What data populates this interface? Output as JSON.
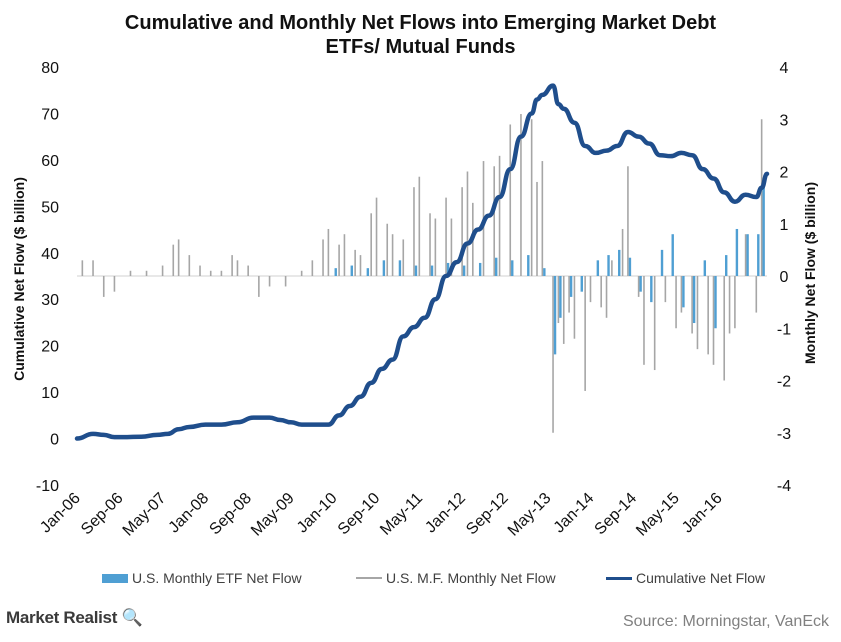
{
  "header": {
    "title_line1": "Cumulative and Monthly Net Flows into Emerging Market Debt",
    "title_line2": "ETFs/ Mutual Funds"
  },
  "footer": {
    "brand": "Market Realist",
    "source": "Source: Morningstar, VanEck"
  },
  "colors": {
    "etf": "#4f9fd3",
    "etf_dark": "#2f7fa8",
    "mf": "#a6a6a6",
    "cumulative": "#1f4e8c"
  },
  "chart_data": {
    "type": "line",
    "title": "Cumulative and Monthly Net Flows into Emerging Market Debt ETFs/ Mutual Funds",
    "x_tick_labels": [
      "Jan-06",
      "Sep-06",
      "May-07",
      "Jan-08",
      "Sep-08",
      "May-09",
      "Jan-10",
      "Sep-10",
      "May-11",
      "Jan-12",
      "Sep-12",
      "May-13",
      "Jan-14",
      "Sep-14",
      "May-15",
      "Jan-16"
    ],
    "x_start": "Jan-06",
    "x_end": "Oct-16",
    "ylabel_left": "Cumulative Net Flow ($ billion)",
    "ylabel_right": "Monthly Net Flow ($ billion)",
    "ylim_left": [
      -10,
      80
    ],
    "ylim_right": [
      -4,
      4
    ],
    "yticks_left": [
      "80",
      "70",
      "60",
      "50",
      "40",
      "30",
      "20",
      "10",
      "0",
      "-10"
    ],
    "yticks_right": [
      "4",
      "3",
      "2",
      "1",
      "0",
      "-1",
      "-2",
      "-3",
      "-4"
    ],
    "legend_position": "bottom",
    "series": [
      {
        "name": "U.S. Monthly ETF Net Flow",
        "type": "bar",
        "axis": "right",
        "points": [
          [
            "Jan-10",
            0.15
          ],
          [
            "Apr-10",
            0.2
          ],
          [
            "Jul-10",
            0.15
          ],
          [
            "Oct-10",
            0.3
          ],
          [
            "Jan-11",
            0.3
          ],
          [
            "Apr-11",
            0.2
          ],
          [
            "Jul-11",
            0.2
          ],
          [
            "Oct-11",
            0.25
          ],
          [
            "Jan-12",
            0.2
          ],
          [
            "Apr-12",
            0.25
          ],
          [
            "Jul-12",
            0.35
          ],
          [
            "Oct-12",
            0.3
          ],
          [
            "Jan-13",
            0.4
          ],
          [
            "Apr-13",
            0.15
          ],
          [
            "Jun-13",
            -1.5
          ],
          [
            "Jul-13",
            -0.8
          ],
          [
            "Sep-13",
            -0.4
          ],
          [
            "Nov-13",
            -0.3
          ],
          [
            "Feb-14",
            0.3
          ],
          [
            "Apr-14",
            0.4
          ],
          [
            "Jun-14",
            0.5
          ],
          [
            "Aug-14",
            0.35
          ],
          [
            "Oct-14",
            -0.3
          ],
          [
            "Dec-14",
            -0.5
          ],
          [
            "Feb-15",
            0.5
          ],
          [
            "Apr-15",
            0.8
          ],
          [
            "Jun-15",
            -0.6
          ],
          [
            "Aug-15",
            -0.9
          ],
          [
            "Oct-15",
            0.3
          ],
          [
            "Dec-15",
            -1.0
          ],
          [
            "Feb-16",
            0.4
          ],
          [
            "Apr-16",
            0.9
          ],
          [
            "Jun-16",
            0.8
          ],
          [
            "Aug-16",
            0.8
          ],
          [
            "Sep-16",
            1.8
          ]
        ]
      },
      {
        "name": "U.S. M.F. Monthly Net Flow",
        "type": "bar",
        "axis": "right",
        "points": [
          [
            "Feb-06",
            0.3
          ],
          [
            "Apr-06",
            0.3
          ],
          [
            "Jun-06",
            -0.4
          ],
          [
            "Aug-06",
            -0.3
          ],
          [
            "Nov-06",
            0.1
          ],
          [
            "Feb-07",
            0.1
          ],
          [
            "May-07",
            0.2
          ],
          [
            "Jul-07",
            0.6
          ],
          [
            "Aug-07",
            0.7
          ],
          [
            "Oct-07",
            0.4
          ],
          [
            "Dec-07",
            0.2
          ],
          [
            "Feb-08",
            0.1
          ],
          [
            "Apr-08",
            0.1
          ],
          [
            "Jun-08",
            0.4
          ],
          [
            "Jul-08",
            0.3
          ],
          [
            "Sep-08",
            0.2
          ],
          [
            "Nov-08",
            -0.4
          ],
          [
            "Jan-09",
            -0.2
          ],
          [
            "Apr-09",
            -0.2
          ],
          [
            "Jul-09",
            0.1
          ],
          [
            "Sep-09",
            0.3
          ],
          [
            "Nov-09",
            0.7
          ],
          [
            "Dec-09",
            0.9
          ],
          [
            "Feb-10",
            0.6
          ],
          [
            "Mar-10",
            0.8
          ],
          [
            "May-10",
            0.5
          ],
          [
            "Jun-10",
            0.4
          ],
          [
            "Aug-10",
            1.2
          ],
          [
            "Sep-10",
            1.5
          ],
          [
            "Nov-10",
            1.0
          ],
          [
            "Dec-10",
            0.8
          ],
          [
            "Feb-11",
            0.7
          ],
          [
            "Apr-11",
            1.7
          ],
          [
            "May-11",
            1.9
          ],
          [
            "Jul-11",
            1.2
          ],
          [
            "Aug-11",
            1.1
          ],
          [
            "Oct-11",
            1.5
          ],
          [
            "Nov-11",
            1.1
          ],
          [
            "Jan-12",
            1.7
          ],
          [
            "Feb-12",
            2.0
          ],
          [
            "Mar-12",
            1.4
          ],
          [
            "May-12",
            2.2
          ],
          [
            "Jul-12",
            2.1
          ],
          [
            "Aug-12",
            2.3
          ],
          [
            "Oct-12",
            2.9
          ],
          [
            "Dec-12",
            3.1
          ],
          [
            "Feb-13",
            3.0
          ],
          [
            "Mar-13",
            1.8
          ],
          [
            "Apr-13",
            2.2
          ],
          [
            "Jun-13",
            -3.0
          ],
          [
            "Jul-13",
            -0.9
          ],
          [
            "Aug-13",
            -1.3
          ],
          [
            "Sep-13",
            -0.7
          ],
          [
            "Oct-13",
            -1.2
          ],
          [
            "Dec-13",
            -2.2
          ],
          [
            "Jan-14",
            -0.5
          ],
          [
            "Mar-14",
            -0.6
          ],
          [
            "Apr-14",
            -0.8
          ],
          [
            "May-14",
            0.3
          ],
          [
            "Jul-14",
            0.9
          ],
          [
            "Aug-14",
            2.1
          ],
          [
            "Oct-14",
            -0.4
          ],
          [
            "Nov-14",
            -1.7
          ],
          [
            "Jan-15",
            -1.8
          ],
          [
            "Mar-15",
            -0.5
          ],
          [
            "May-15",
            -1.0
          ],
          [
            "Jun-15",
            -0.7
          ],
          [
            "Aug-15",
            -1.1
          ],
          [
            "Sep-15",
            -1.4
          ],
          [
            "Nov-15",
            -1.5
          ],
          [
            "Dec-15",
            -1.7
          ],
          [
            "Feb-16",
            -2.0
          ],
          [
            "Mar-16",
            -1.1
          ],
          [
            "Apr-16",
            -1.0
          ],
          [
            "Jun-16",
            0.8
          ],
          [
            "Aug-16",
            -0.7
          ],
          [
            "Sep-16",
            3.0
          ]
        ]
      },
      {
        "name": "Cumulative Net Flow",
        "type": "line",
        "axis": "left",
        "points": [
          [
            "Jan-06",
            0
          ],
          [
            "Apr-06",
            1
          ],
          [
            "Jun-06",
            0.8
          ],
          [
            "Aug-06",
            0.3
          ],
          [
            "Oct-06",
            0.3
          ],
          [
            "Jan-07",
            0.4
          ],
          [
            "Apr-07",
            0.8
          ],
          [
            "Jun-07",
            1
          ],
          [
            "Aug-07",
            2
          ],
          [
            "Oct-07",
            2.5
          ],
          [
            "Jan-08",
            3
          ],
          [
            "Apr-08",
            3
          ],
          [
            "Jul-08",
            3.5
          ],
          [
            "Oct-08",
            4.5
          ],
          [
            "Jan-09",
            4.5
          ],
          [
            "Mar-09",
            4
          ],
          [
            "May-09",
            3.5
          ],
          [
            "Jul-09",
            3
          ],
          [
            "Oct-09",
            3
          ],
          [
            "Dec-09",
            3
          ],
          [
            "Feb-10",
            5
          ],
          [
            "Apr-10",
            7
          ],
          [
            "Jun-10",
            9
          ],
          [
            "Aug-10",
            12
          ],
          [
            "Oct-10",
            15
          ],
          [
            "Dec-10",
            17
          ],
          [
            "Feb-11",
            22
          ],
          [
            "Apr-11",
            24
          ],
          [
            "Jun-11",
            26
          ],
          [
            "Aug-11",
            30
          ],
          [
            "Oct-11",
            35
          ],
          [
            "Dec-11",
            38
          ],
          [
            "Feb-12",
            42
          ],
          [
            "Apr-12",
            45
          ],
          [
            "Jun-12",
            48
          ],
          [
            "Aug-12",
            52
          ],
          [
            "Oct-12",
            58
          ],
          [
            "Dec-12",
            65
          ],
          [
            "Feb-13",
            70
          ],
          [
            "Mar-13",
            73
          ],
          [
            "Apr-13",
            74
          ],
          [
            "Jun-13",
            76
          ],
          [
            "Jul-13",
            72
          ],
          [
            "Aug-13",
            71
          ],
          [
            "Oct-13",
            68
          ],
          [
            "Dec-13",
            63
          ],
          [
            "Feb-14",
            61.5
          ],
          [
            "Apr-14",
            62
          ],
          [
            "Jun-14",
            63
          ],
          [
            "Aug-14",
            66
          ],
          [
            "Oct-14",
            65
          ],
          [
            "Dec-14",
            63.5
          ],
          [
            "Feb-15",
            61
          ],
          [
            "Apr-15",
            60.8
          ],
          [
            "Jun-15",
            61.5
          ],
          [
            "Aug-15",
            61
          ],
          [
            "Oct-15",
            58
          ],
          [
            "Dec-15",
            56
          ],
          [
            "Feb-16",
            53
          ],
          [
            "Apr-16",
            51
          ],
          [
            "Jun-16",
            52.5
          ],
          [
            "Aug-16",
            52
          ],
          [
            "Sep-16",
            54
          ],
          [
            "Oct-16",
            57
          ]
        ]
      }
    ]
  }
}
